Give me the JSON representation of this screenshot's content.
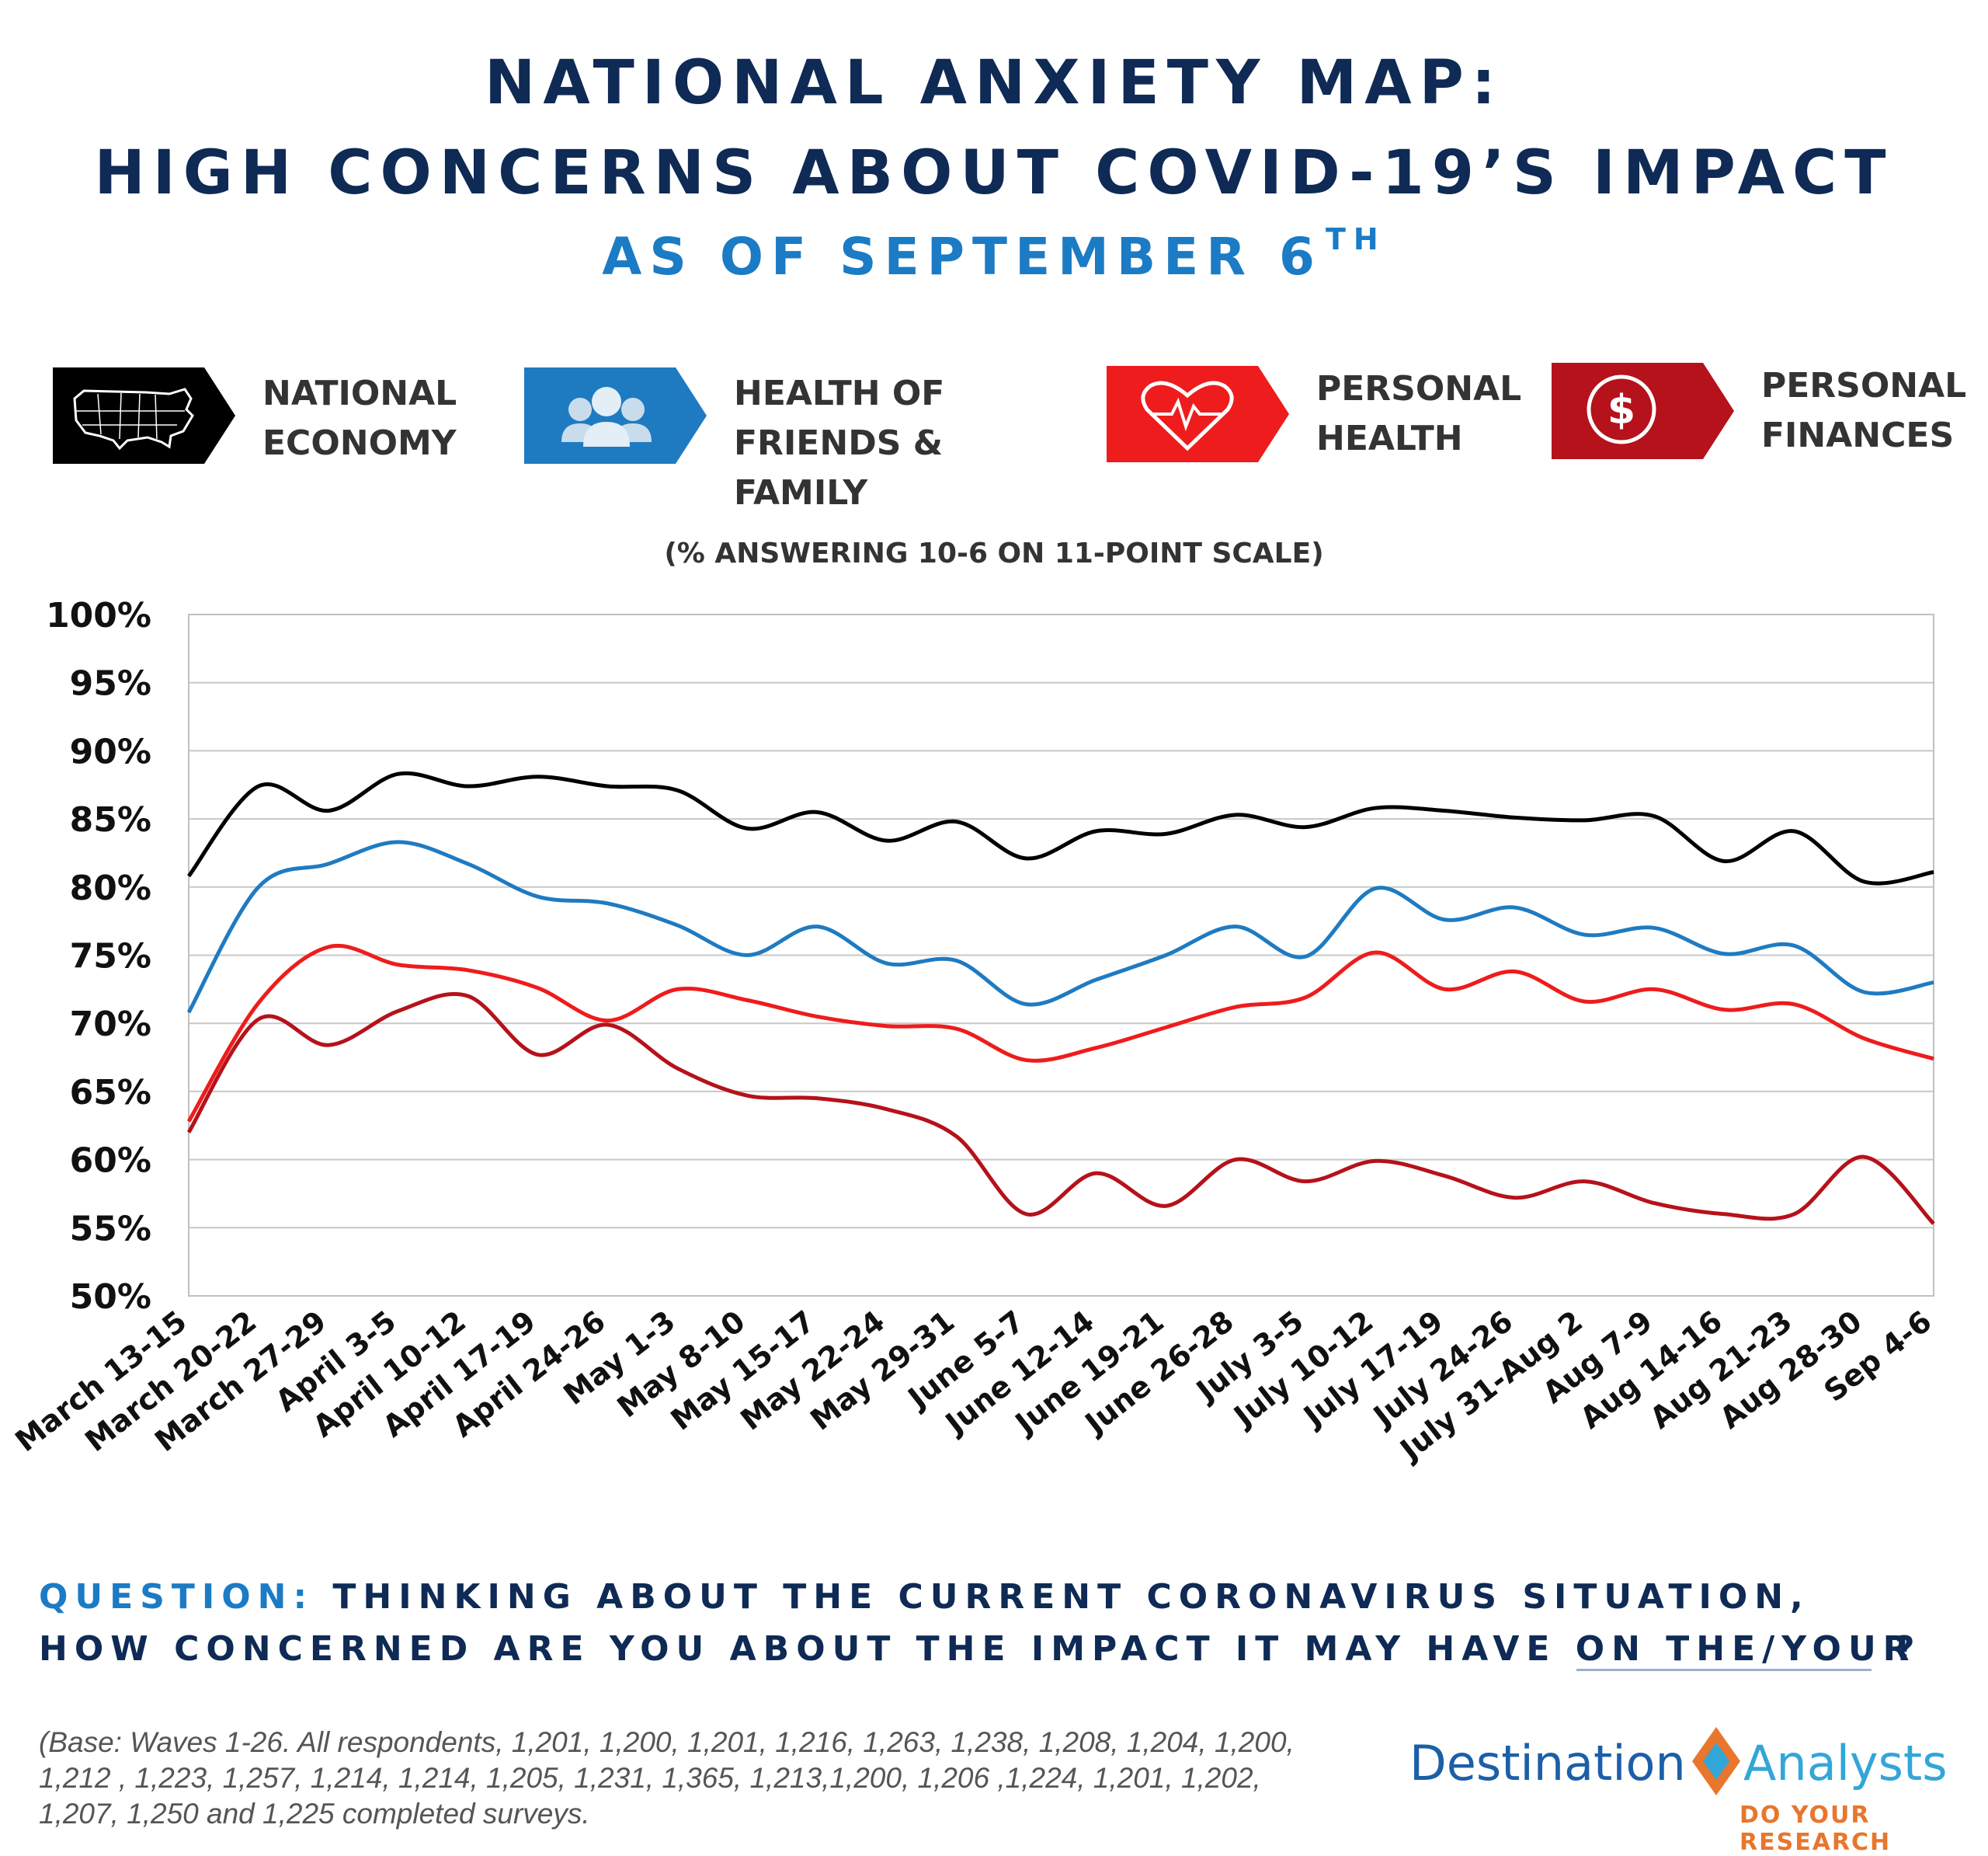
{
  "title": {
    "line1": "NATIONAL ANXIETY MAP:",
    "line2": "HIGH CONCERNS ABOUT COVID-19’S IMPACT",
    "subtitle": "AS OF SEPTEMBER 6",
    "subtitle_sup": "TH"
  },
  "legend": [
    {
      "line1": "NATIONAL",
      "line2": "ECONOMY",
      "color": "#000000",
      "icon": "us-map-icon"
    },
    {
      "line1": "HEALTH OF",
      "line2": "FRIENDS & FAMILY",
      "color": "#1f7bc1",
      "icon": "people-group-icon"
    },
    {
      "line1": "PERSONAL",
      "line2": "HEALTH",
      "color": "#ee1c1c",
      "icon": "heart-pulse-icon"
    },
    {
      "line1": "PERSONAL",
      "line2": "FINANCES",
      "color": "#b5121b",
      "icon": "dollar-coin-icon"
    }
  ],
  "chart_subtitle": "(% ANSWERING 10-6 ON 11-POINT SCALE)",
  "chart_data": {
    "type": "line",
    "title": "(% ANSWERING 10-6 ON 11-POINT SCALE)",
    "ylim": [
      50,
      100
    ],
    "yticks": [
      "50%",
      "55%",
      "60%",
      "65%",
      "70%",
      "75%",
      "80%",
      "85%",
      "90%",
      "95%",
      "100%"
    ],
    "ytick_values": [
      50,
      55,
      60,
      65,
      70,
      75,
      80,
      85,
      90,
      95,
      100
    ],
    "grid": true,
    "categories": [
      "March 13-15",
      "March 20-22",
      "March 27-29",
      "April 3-5",
      "April 10-12",
      "April 17-19",
      "April 24-26",
      "May 1-3",
      "May 8-10",
      "May 15-17",
      "May 22-24",
      "May 29-31",
      "June 5-7",
      "June 12-14",
      "June 19-21",
      "June 26-28",
      "July 3-5",
      "July 10-12",
      "July 17-19",
      "July 24-26",
      "July 31-Aug 2",
      "Aug 7-9",
      "Aug 14-16",
      "Aug 21-23",
      "Aug 28-30",
      "Sep 4-6"
    ],
    "series": [
      {
        "name": "National Economy",
        "color": "#000000",
        "values": [
          80.8,
          87.4,
          85.6,
          88.3,
          87.4,
          88.1,
          87.4,
          87.1,
          84.3,
          85.5,
          83.4,
          84.8,
          82.1,
          84.1,
          83.9,
          85.3,
          84.4,
          85.8,
          85.6,
          85.1,
          84.9,
          85.2,
          81.9,
          84.1,
          80.4,
          81.1
        ]
      },
      {
        "name": "Health of Friends & Family",
        "color": "#1f7bc1",
        "values": [
          70.8,
          80.0,
          81.7,
          83.3,
          81.7,
          79.3,
          78.8,
          77.2,
          75.0,
          77.1,
          74.4,
          74.6,
          71.4,
          73.2,
          75.0,
          77.1,
          74.9,
          79.9,
          77.6,
          78.5,
          76.5,
          77.0,
          75.1,
          75.7,
          72.3,
          73.0
        ]
      },
      {
        "name": "Personal Health",
        "color": "#ee1c1c",
        "values": [
          62.8,
          71.5,
          75.6,
          74.3,
          73.9,
          72.6,
          70.2,
          72.5,
          71.7,
          70.5,
          69.8,
          69.6,
          67.3,
          68.2,
          69.7,
          71.2,
          71.9,
          75.2,
          72.5,
          73.8,
          71.6,
          72.5,
          71.0,
          71.4,
          68.9,
          67.4
        ]
      },
      {
        "name": "Personal Finances",
        "color": "#b5121b",
        "values": [
          62.0,
          70.3,
          68.4,
          70.9,
          72.0,
          67.7,
          69.9,
          66.7,
          64.7,
          64.5,
          63.7,
          61.7,
          56.0,
          59.0,
          56.6,
          60.0,
          58.4,
          59.9,
          58.8,
          57.2,
          58.4,
          56.8,
          56.0,
          56.0,
          60.2,
          55.3
        ]
      }
    ]
  },
  "question": {
    "prefix": "QUESTION:",
    "line1": "THINKING ABOUT THE CURRENT CORONAVIRUS SITUATION,",
    "line2": "HOW CONCERNED ARE YOU ABOUT THE IMPACT IT MAY HAVE ON THE/YOUR",
    "mark": "?"
  },
  "base_note": {
    "line1": "(Base: Waves 1-26.  All respondents, 1,201, 1,200, 1,201, 1,216, 1,263, 1,238, 1,208, 1,204, 1,200,",
    "line2": "1,212 , 1,223, 1,257, 1,214, 1,214, 1,205, 1,231, 1,365, 1,213,1,200, 1,206 ,1,224, 1,201, 1,202,",
    "line3": "1,207, 1,250 and 1,225 completed surveys."
  },
  "logo": {
    "left": "Destination",
    "right": "Analysts",
    "tagline": "DO YOUR RESEARCH"
  }
}
